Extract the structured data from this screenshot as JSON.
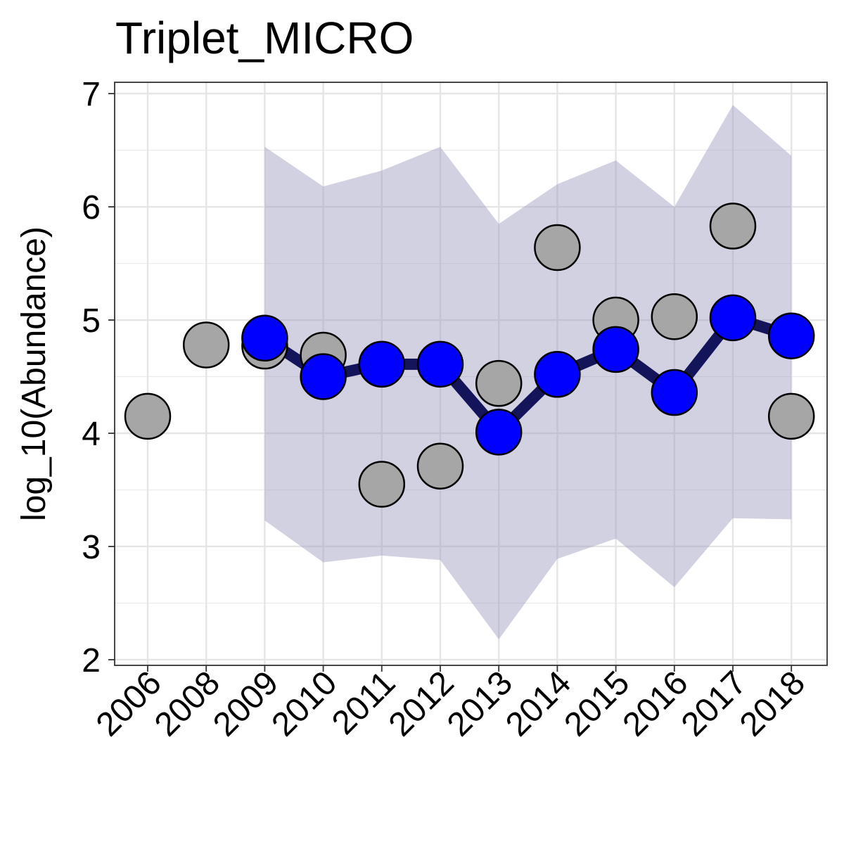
{
  "chart_data": {
    "type": "line",
    "title": "Triplet_MICRO",
    "xlabel": "",
    "ylabel": "log_10(Abundance)",
    "categories": [
      "2006",
      "2008",
      "2009",
      "2010",
      "2011",
      "2012",
      "2013",
      "2014",
      "2015",
      "2016",
      "2017",
      "2018"
    ],
    "yticks": [
      "2",
      "3",
      "4",
      "5",
      "6",
      "7"
    ],
    "ylim": [
      1.95,
      7.1
    ],
    "grid": true,
    "legend": "none",
    "colors": {
      "ribbon": "#9999bf",
      "line": "#14145a",
      "fitted_point": "#0000ff",
      "observed_point": "#a6a6a6",
      "point_stroke": "#000000"
    },
    "series": [
      {
        "role": "observed",
        "x": [
          "2006",
          "2008",
          "2009",
          "2010",
          "2011",
          "2012",
          "2013",
          "2014",
          "2015",
          "2016",
          "2017",
          "2018"
        ],
        "values": [
          4.15,
          4.78,
          4.77,
          4.69,
          3.55,
          3.71,
          4.44,
          5.64,
          5.0,
          5.03,
          5.83,
          4.15
        ]
      },
      {
        "role": "fitted",
        "x": [
          "2009",
          "2010",
          "2011",
          "2012",
          "2013",
          "2014",
          "2015",
          "2016",
          "2017",
          "2018"
        ],
        "values": [
          4.84,
          4.5,
          4.61,
          4.61,
          4.01,
          4.52,
          4.74,
          4.36,
          5.02,
          4.86
        ]
      },
      {
        "role": "interval_upper",
        "x": [
          "2009",
          "2010",
          "2011",
          "2012",
          "2013",
          "2014",
          "2015",
          "2016",
          "2017",
          "2018"
        ],
        "values": [
          6.53,
          6.18,
          6.32,
          6.53,
          5.85,
          6.2,
          6.41,
          6.0,
          6.9,
          6.45
        ]
      },
      {
        "role": "interval_lower",
        "x": [
          "2009",
          "2010",
          "2011",
          "2012",
          "2013",
          "2014",
          "2015",
          "2016",
          "2017",
          "2018"
        ],
        "values": [
          3.23,
          2.86,
          2.92,
          2.88,
          2.18,
          2.89,
          3.07,
          2.64,
          3.25,
          3.24
        ]
      }
    ]
  }
}
